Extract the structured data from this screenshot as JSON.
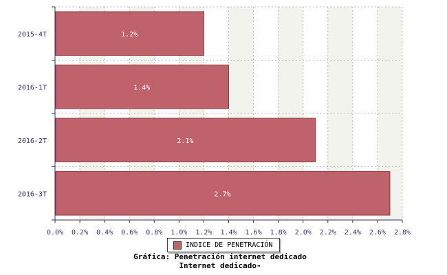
{
  "chart_data": {
    "type": "bar",
    "orientation": "horizontal",
    "categories": [
      "2015-4T",
      "2016-1T",
      "2016-2T",
      "2016-3T"
    ],
    "series": [
      {
        "name": "INDICE DE PENETRACIÓN",
        "values": [
          1.2,
          1.4,
          2.1,
          2.7
        ],
        "labels": [
          "1.2%",
          "1.4%",
          "2.1%",
          "2.7%"
        ]
      }
    ],
    "xlim": [
      0,
      2.8
    ],
    "x_ticks": [
      "0.0%",
      "0.2%",
      "0.4%",
      "0.6%",
      "0.8%",
      "1.0%",
      "1.2%",
      "1.4%",
      "1.6%",
      "1.8%",
      "2.0%",
      "2.2%",
      "2.4%",
      "2.6%",
      "2.8%"
    ],
    "grid": true,
    "legend_position": "bottom",
    "colors": {
      "bar": "#c0626b",
      "bar_edge": "#8e3c45",
      "band": "#f3f3ee",
      "axis": "#333366"
    }
  },
  "captions": {
    "line1": "Gráfica: Penetración internet dedicado",
    "line2": "Internet dedicado-"
  }
}
